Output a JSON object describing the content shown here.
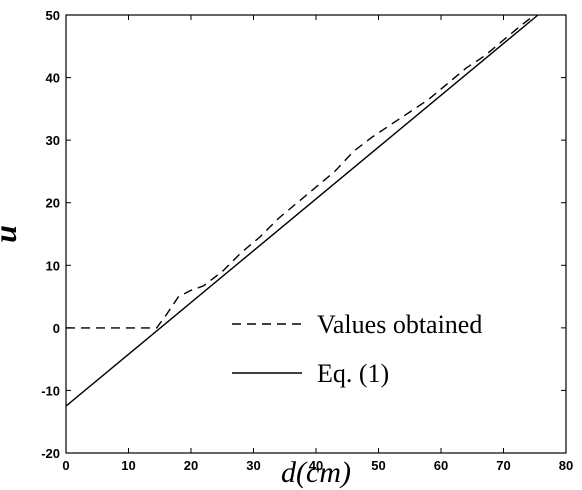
{
  "chart_data": {
    "type": "line",
    "xlabel": "d(cm)",
    "ylabel": "u",
    "xlim": [
      0,
      80
    ],
    "ylim": [
      -20,
      50
    ],
    "xticks": [
      "0",
      "10",
      "20",
      "30",
      "40",
      "50",
      "60",
      "70",
      "80"
    ],
    "yticks": [
      "-20",
      "-10",
      "0",
      "10",
      "20",
      "30",
      "40",
      "50"
    ],
    "grid": false,
    "legend_position": "bottom-right",
    "series": [
      {
        "name": "Values obtained",
        "style": "dashed",
        "color": "#000000",
        "x": [
          0,
          14.5,
          16,
          18,
          20,
          22,
          25,
          28,
          31,
          34,
          37,
          40,
          43,
          46,
          49,
          52,
          55,
          58,
          61,
          64,
          67,
          70,
          73,
          75
        ],
        "y": [
          0,
          0,
          2,
          5,
          6,
          6.7,
          9,
          12,
          14.5,
          17.5,
          20,
          22.5,
          25,
          28.2,
          30.5,
          32.5,
          34.5,
          36.5,
          39,
          41.5,
          43.5,
          46,
          48.5,
          50
        ]
      },
      {
        "name": "Eq. (1)",
        "style": "solid",
        "color": "#000000",
        "x": [
          0,
          75.5
        ],
        "y": [
          -12.5,
          50
        ]
      }
    ]
  }
}
